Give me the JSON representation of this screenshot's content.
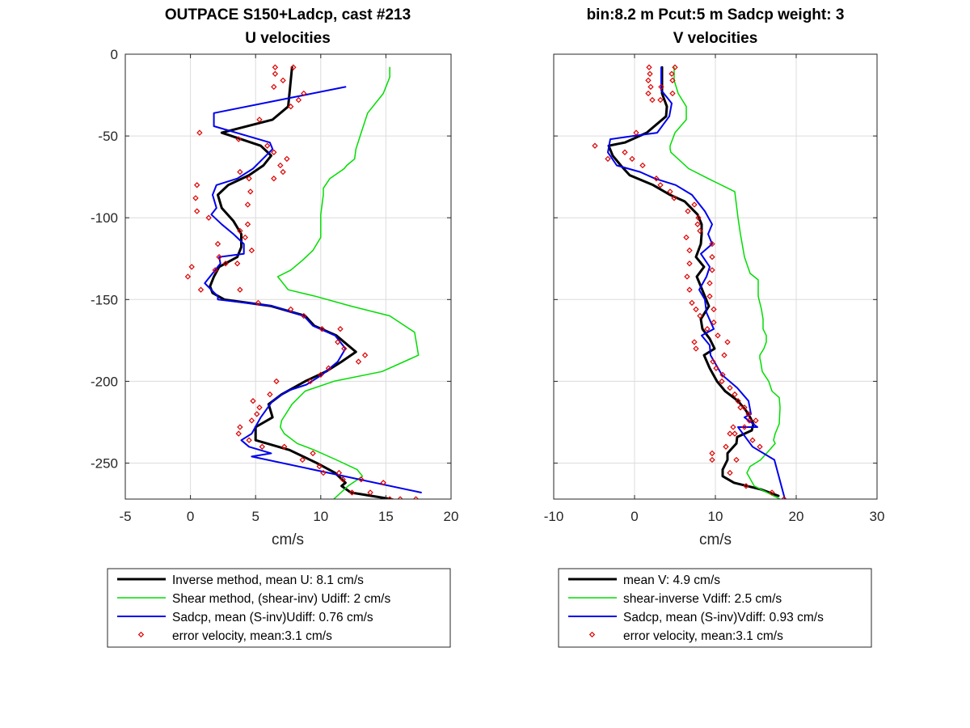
{
  "chart_data": [
    {
      "type": "line",
      "title": [
        "OUTPACE S150+Ladcp, cast #213",
        "U velocities"
      ],
      "xlabel": "cm/s",
      "ylabel": "",
      "xlim": [
        -5,
        20
      ],
      "ylim": [
        -272,
        0
      ],
      "xticks": [
        -5,
        0,
        5,
        10,
        15,
        20
      ],
      "yticks": [
        0,
        -50,
        -100,
        -150,
        -200,
        -250
      ],
      "grid": true,
      "legend_placement": "below",
      "legend": [
        "Inverse method, mean U:  8.1 cm/s",
        "Shear method, (shear-inv)  Udiff:  2 cm/s",
        "Sadcp, mean (S-inv)Udiff: 0.76 cm/s",
        "error velocity, mean:3.1 cm/s"
      ],
      "series": [
        {
          "style": "line",
          "color": "#000000",
          "width": 3,
          "x": [
            7.8,
            7.7,
            7.6,
            7.5,
            6.3,
            2.4,
            5.4,
            6.2,
            5.6,
            4.5,
            2.9,
            2.1,
            2.4,
            3.3,
            3.9,
            3.9,
            3.6,
            2.2,
            1.8,
            1.5,
            1.7,
            2.6,
            6.2,
            8.8,
            9.5,
            11.2,
            12.7,
            11.6,
            10.4,
            8.8,
            7,
            6,
            6.3,
            5,
            5,
            7.6,
            9.7,
            11.1,
            11.9,
            11.6,
            12.3,
            15.4,
            16.2
          ],
          "y": [
            -8,
            -16,
            -24,
            -32,
            -40,
            -48,
            -56,
            -62,
            -68,
            -74,
            -80,
            -86,
            -94,
            -102,
            -110,
            -118,
            -124,
            -130,
            -136,
            -142,
            -146,
            -150,
            -154,
            -160,
            -166,
            -172,
            -182,
            -188,
            -194,
            -200,
            -208,
            -214,
            -222,
            -228,
            -236,
            -242,
            -250,
            -256,
            -262,
            -264,
            -268,
            -272,
            -274
          ]
        },
        {
          "style": "line",
          "color": "#00dd00",
          "width": 1.5,
          "x": [
            15.3,
            15.3,
            14.8,
            13.6,
            13.1,
            12.7,
            12.6,
            12,
            11.8,
            10.7,
            10.2,
            10.2,
            10,
            10,
            10,
            9.4,
            8.6,
            7.7,
            6.7,
            7.5,
            9.6,
            12.3,
            15.3,
            17.2,
            17.5,
            14.7,
            11,
            8.8,
            7.8,
            7,
            6.9,
            7.2,
            8.2,
            9.5,
            11.2,
            12.8,
            13.2,
            12.1,
            11
          ],
          "y": [
            -8,
            -14,
            -24,
            -36,
            -48,
            -58,
            -64,
            -68,
            -70,
            -76,
            -82,
            -86,
            -98,
            -108,
            -112,
            -120,
            -126,
            -132,
            -136,
            -144,
            -148,
            -154,
            -160,
            -170,
            -184,
            -194,
            -200,
            -206,
            -214,
            -224,
            -228,
            -232,
            -238,
            -242,
            -248,
            -254,
            -258,
            -264,
            -272
          ]
        },
        {
          "style": "line",
          "color": "#0000ee",
          "width": 2,
          "x": [
            11.9,
            1.8,
            1.8,
            6.1,
            6.3,
            4.8,
            3.6,
            2,
            1.7,
            2,
            1.6,
            2.4,
            3.3,
            4.1,
            4.1,
            2.2,
            2.3,
            1.1,
            2.1,
            2.1,
            6.3,
            8.7,
            9.4,
            11.1,
            11.9,
            11.3,
            10.1,
            8.9,
            7.4,
            6.3,
            5.4,
            4.7,
            3.9,
            4.5,
            6.2,
            4.7,
            17.7
          ],
          "y": [
            -20,
            -36,
            -44,
            -54,
            -58,
            -70,
            -76,
            -80,
            -86,
            -94,
            -98,
            -104,
            -110,
            -116,
            -122,
            -124,
            -128,
            -140,
            -148,
            -150,
            -154,
            -160,
            -166,
            -172,
            -180,
            -188,
            -196,
            -202,
            -206,
            -212,
            -222,
            -232,
            -236,
            -240,
            -244,
            -246,
            -268
          ]
        },
        {
          "style": "markers",
          "color": "#dd0000",
          "x": [
            6.5,
            7.9,
            6.5,
            7.1,
            6.4,
            8.7,
            8.3,
            7.7,
            5.3,
            0.7,
            3.7,
            5.9,
            6.4,
            7.4,
            6.9,
            7.1,
            6.4,
            3.8,
            4.5,
            0.5,
            4.6,
            0.4,
            4.4,
            0.5,
            1.4,
            4.4,
            3.8,
            4.2,
            2.1,
            4.7,
            2.2,
            3.6,
            1.9,
            2.7,
            0.1,
            -0.2,
            0.8,
            3.8,
            5.2,
            7.7,
            8.7,
            10.1,
            11.5,
            11.3,
            11.8,
            13.4,
            12.9,
            10.6,
            10,
            9.2,
            6.6,
            6.1,
            4.8,
            5.3,
            5.1,
            4.7,
            3.8,
            3.7,
            4.5,
            5.5,
            7.2,
            9.4,
            8.6,
            9.9,
            10.2,
            11.4,
            11.7,
            13.1,
            14.8,
            12.4,
            13.8,
            15.3,
            16.1,
            17.3
          ],
          "y": [
            -8,
            -8,
            -12,
            -16,
            -20,
            -24,
            -28,
            -32,
            -40,
            -48,
            -52,
            -56,
            -60,
            -64,
            -68,
            -72,
            -76,
            -72,
            -76,
            -80,
            -84,
            -88,
            -92,
            -96,
            -100,
            -104,
            -108,
            -112,
            -116,
            -120,
            -124,
            -128,
            -132,
            -128,
            -130,
            -136,
            -144,
            -144,
            -152,
            -156,
            -160,
            -168,
            -168,
            -176,
            -180,
            -184,
            -188,
            -192,
            -196,
            -200,
            -200,
            -208,
            -212,
            -216,
            -220,
            -224,
            -228,
            -232,
            -236,
            -240,
            -240,
            -244,
            -248,
            -252,
            -256,
            -256,
            -260,
            -260,
            -262,
            -268,
            -268,
            -272,
            -272,
            -272
          ]
        }
      ]
    },
    {
      "type": "line",
      "title": [
        "bin:8.2 m  Pcut:5 m  Sadcp weight: 3",
        "V velocities"
      ],
      "xlabel": "cm/s",
      "ylabel": "",
      "xlim": [
        -10,
        30
      ],
      "ylim": [
        -272,
        0
      ],
      "xticks": [
        -10,
        0,
        10,
        20,
        30
      ],
      "yticks": [
        0,
        -50,
        -100,
        -150,
        -200,
        -250
      ],
      "grid": true,
      "legend_placement": "below",
      "legend": [
        "mean V:  4.9 cm/s",
        "shear-inverse Vdiff:  2.5 cm/s",
        "Sadcp, mean (S-inv)Vdiff: 0.93 cm/s",
        "error velocity, mean:3.1 cm/s"
      ],
      "series": [
        {
          "style": "line",
          "color": "#000000",
          "width": 3,
          "x": [
            3.4,
            3.4,
            3.4,
            4,
            3.9,
            1.5,
            -1.2,
            -3.2,
            -2.7,
            -1.7,
            -0.6,
            2.3,
            4.4,
            6.2,
            7.8,
            8.3,
            8.3,
            8.2,
            7.6,
            8.6,
            7.7,
            8.2,
            8.7,
            9.2,
            8.2,
            8.4,
            9.3,
            9.9,
            8.6,
            9.3,
            10.2,
            11.2,
            12.8,
            13.8,
            14.3,
            14.7,
            14.5,
            12.7,
            12.6,
            11.5,
            11.5,
            10.9,
            10.9,
            12.3,
            15.6,
            17.8
          ],
          "y": [
            -8,
            -16,
            -24,
            -32,
            -38,
            -48,
            -54,
            -56,
            -62,
            -68,
            -74,
            -80,
            -86,
            -90,
            -98,
            -104,
            -110,
            -116,
            -124,
            -130,
            -136,
            -142,
            -148,
            -154,
            -162,
            -168,
            -174,
            -180,
            -184,
            -192,
            -200,
            -206,
            -212,
            -218,
            -222,
            -226,
            -230,
            -234,
            -238,
            -244,
            -248,
            -254,
            -258,
            -262,
            -266,
            -270
          ]
        },
        {
          "style": "line",
          "color": "#00dd00",
          "width": 1.5,
          "x": [
            4.9,
            4.9,
            5.4,
            6.4,
            6.4,
            5,
            4.4,
            4.4,
            4.5,
            6.7,
            9.1,
            12.4,
            12.8,
            13.1,
            13.6,
            14.3,
            15.3,
            15.3,
            15.7,
            15.9,
            15.9,
            16.3,
            16.3,
            16,
            15.5,
            15.5,
            15.6,
            15.8,
            16.6,
            17,
            17.9,
            18,
            17.9,
            17.4,
            17.2,
            17.4,
            16.7,
            15.6,
            14.3,
            13.9,
            14.8,
            18
          ],
          "y": [
            -8,
            -16,
            -24,
            -32,
            -40,
            -48,
            -56,
            -58,
            -60,
            -70,
            -76,
            -84,
            -100,
            -110,
            -124,
            -134,
            -138,
            -148,
            -156,
            -162,
            -168,
            -172,
            -176,
            -180,
            -184,
            -186,
            -188,
            -194,
            -200,
            -206,
            -210,
            -216,
            -226,
            -232,
            -236,
            -238,
            -242,
            -248,
            -252,
            -256,
            -264,
            -272
          ]
        },
        {
          "style": "line",
          "color": "#0000ee",
          "width": 2,
          "x": [
            3.3,
            3.3,
            3.3,
            4.6,
            4.3,
            2.8,
            -0.2,
            -3,
            -3.3,
            -2.2,
            0.7,
            2.5,
            5.1,
            7.1,
            8.7,
            9.6,
            9.1,
            9.6,
            8.2,
            9.3,
            8.9,
            8,
            8.7,
            8.9,
            9.8,
            8.3,
            9.3,
            9.4,
            10.8,
            12.7,
            14.1,
            14.4,
            13.6,
            15.2,
            12.8,
            14.6,
            17.3,
            18.6
          ],
          "y": [
            -8,
            -16,
            -22,
            -30,
            -38,
            -48,
            -50,
            -52,
            -60,
            -68,
            -72,
            -76,
            -80,
            -86,
            -96,
            -104,
            -110,
            -116,
            -122,
            -130,
            -136,
            -144,
            -150,
            -158,
            -168,
            -172,
            -178,
            -184,
            -196,
            -204,
            -212,
            -220,
            -222,
            -228,
            -228,
            -240,
            -248,
            -272
          ]
        },
        {
          "style": "markers",
          "color": "#dd0000",
          "x": [
            1.8,
            5,
            1.9,
            4.6,
            1.7,
            4.7,
            2,
            3.3,
            1.7,
            4.7,
            2.2,
            3.2,
            0.2,
            -4.9,
            -3.3,
            -1.2,
            -0.3,
            1,
            2.7,
            3.2,
            4.4,
            4.9,
            7.4,
            6.6,
            7.9,
            7.8,
            8.1,
            6.4,
            9.6,
            6.8,
            9.6,
            6.8,
            9.6,
            6.5,
            9.3,
            6.8,
            9.3,
            7.1,
            9.8,
            7.6,
            8.1,
            9.8,
            9,
            10.3,
            7.4,
            11.5,
            7.6,
            11.1,
            9.7,
            10.1,
            10.9,
            10.8,
            11.8,
            12.4,
            12.8,
            13.6,
            13.1,
            14.1,
            14.2,
            15,
            12.2,
            13.6,
            11.8,
            12.4,
            14.6,
            15.5,
            11.3,
            9.6,
            9.6,
            12.6,
            11.8,
            13.8,
            17,
            18.5
          ],
          "y": [
            -8,
            -8,
            -12,
            -12,
            -16,
            -16,
            -20,
            -20,
            -24,
            -24,
            -28,
            -28,
            -48,
            -56,
            -64,
            -60,
            -64,
            -68,
            -76,
            -80,
            -84,
            -88,
            -92,
            -96,
            -100,
            -104,
            -108,
            -112,
            -116,
            -120,
            -124,
            -128,
            -132,
            -136,
            -140,
            -144,
            -148,
            -152,
            -156,
            -156,
            -160,
            -164,
            -168,
            -172,
            -176,
            -176,
            -180,
            -184,
            -188,
            -192,
            -196,
            -200,
            -204,
            -208,
            -212,
            -216,
            -216,
            -220,
            -224,
            -224,
            -228,
            -228,
            -232,
            -232,
            -236,
            -240,
            -240,
            -244,
            -248,
            -248,
            -256,
            -264,
            -268,
            -272
          ]
        }
      ]
    }
  ]
}
